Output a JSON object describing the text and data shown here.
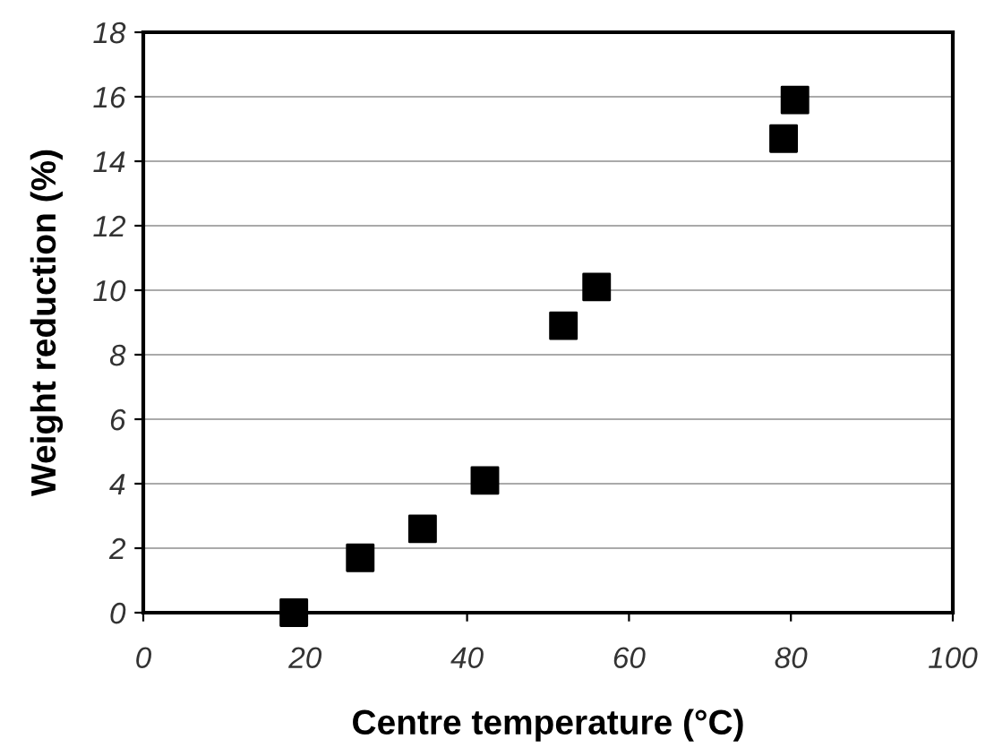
{
  "chart_data": {
    "type": "scatter",
    "xlabel": "Centre temperature (°C)",
    "ylabel": "Weight reduction (%)",
    "x": [
      18.6,
      26.8,
      34.5,
      42.2,
      51.9,
      56.0,
      79.1,
      80.5
    ],
    "series": [
      {
        "color": "#000000",
        "values": [
          0,
          1.7,
          2.6,
          4.1,
          8.9,
          10.1,
          14.7,
          15.9
        ]
      }
    ],
    "marker": "square",
    "xlim": [
      0,
      100
    ],
    "xticks": [
      0,
      20,
      40,
      60,
      80,
      100
    ],
    "ylim": [
      0,
      18
    ],
    "yticks": [
      0,
      2,
      4,
      6,
      8,
      10,
      12,
      14,
      16,
      18
    ],
    "grid": "y"
  }
}
